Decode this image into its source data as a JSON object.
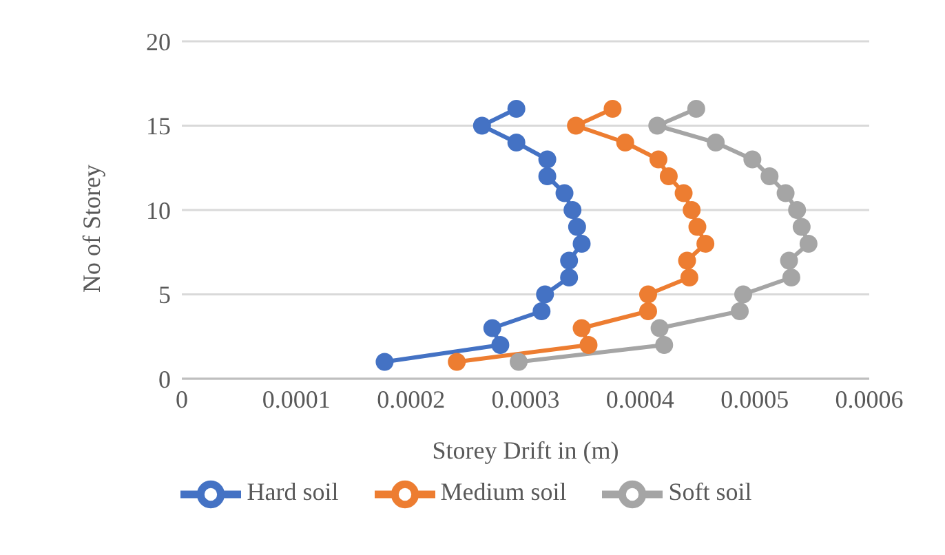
{
  "chart_data": {
    "type": "line",
    "xlabel": "Storey Drift in (m)",
    "ylabel": "No of Storey",
    "xlim": [
      0,
      0.0006
    ],
    "xticks": [
      0,
      0.0001,
      0.0002,
      0.0003,
      0.0004,
      0.0005,
      0.0006
    ],
    "ylim": [
      0,
      20
    ],
    "yticks": [
      0,
      5,
      10,
      15,
      20
    ],
    "grid": "y",
    "legend": "bottom",
    "marker": "circle",
    "line_style": "solid",
    "series": [
      {
        "name": "Hard soil",
        "color": "#4472c4",
        "x": [
          0.000177,
          0.000278,
          0.000271,
          0.000314,
          0.000317,
          0.000338,
          0.000338,
          0.000349,
          0.000345,
          0.000341,
          0.000334,
          0.000319,
          0.000319,
          0.000292,
          0.000262,
          0.000292
        ],
        "values": [
          1,
          2,
          3,
          4,
          5,
          6,
          7,
          8,
          9,
          10,
          11,
          12,
          13,
          14,
          15,
          16
        ]
      },
      {
        "name": "Medium soil",
        "color": "#ed7d31",
        "x": [
          0.00024,
          0.000355,
          0.000349,
          0.000407,
          0.000407,
          0.000443,
          0.000441,
          0.000457,
          0.00045,
          0.000445,
          0.000438,
          0.000425,
          0.000416,
          0.000387,
          0.000344,
          0.000376
        ],
        "values": [
          1,
          2,
          3,
          4,
          5,
          6,
          7,
          8,
          9,
          10,
          11,
          12,
          13,
          14,
          15,
          16
        ]
      },
      {
        "name": "Soft soil",
        "color": "#a5a5a5",
        "x": [
          0.000294,
          0.000421,
          0.000417,
          0.000487,
          0.00049,
          0.000532,
          0.00053,
          0.000547,
          0.000541,
          0.000537,
          0.000527,
          0.000513,
          0.000498,
          0.000466,
          0.000415,
          0.000449
        ],
        "values": [
          1,
          2,
          3,
          4,
          5,
          6,
          7,
          8,
          9,
          10,
          11,
          12,
          13,
          14,
          15,
          16
        ]
      }
    ]
  }
}
